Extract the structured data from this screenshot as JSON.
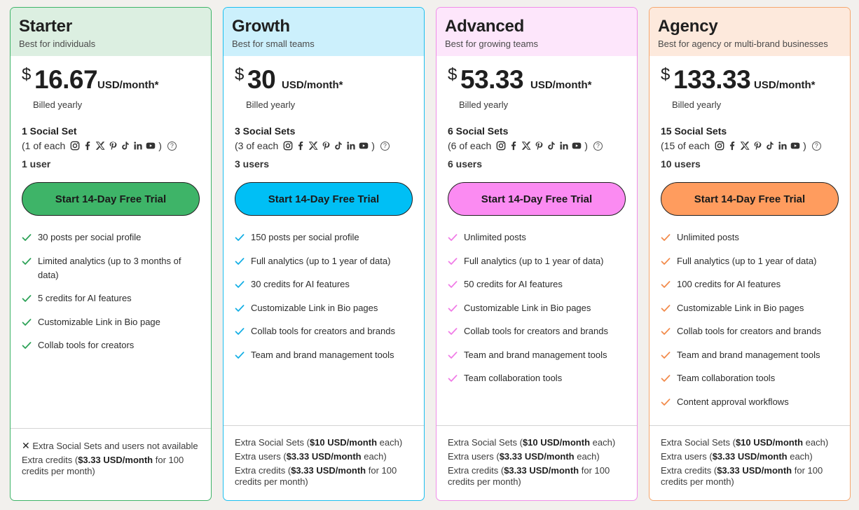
{
  "plans": [
    {
      "name": "Starter",
      "tagline": "Best for individuals",
      "currency": "$",
      "amount": "16.67",
      "unit": "USD/month*",
      "billing": "Billed yearly",
      "sets": "1 Social Set",
      "each_prefix": "(1 of each",
      "each_suffix": ")",
      "users": "1 user",
      "cta": "Start 14-Day Free Trial",
      "colors": {
        "head_bg": "#dcefe1",
        "border": "#3eb468",
        "button": "#3eb468",
        "check": "#2aa155"
      },
      "features": [
        "30 posts per social profile",
        "Limited analytics (up to 3 months of data)",
        "5 credits for AI features",
        "Customizable Link in Bio page",
        "Collab tools for creators"
      ],
      "footer": {
        "note_icon": "x-icon",
        "note": "Extra Social Sets and users not available",
        "credits_pre": "Extra credits (",
        "credits_bold": "$3.33 USD/month",
        "credits_post": " for 100 credits per month)"
      }
    },
    {
      "name": "Growth",
      "tagline": "Best for small teams",
      "currency": "$",
      "amount": "30",
      "unit": "USD/month*",
      "billing": "Billed yearly",
      "sets": "3 Social Sets",
      "each_prefix": "(3 of each",
      "each_suffix": ")",
      "users": "3 users",
      "cta": "Start 14-Day Free Trial",
      "colors": {
        "head_bg": "#ccf0fc",
        "border": "#1cbfef",
        "button": "#00bff5",
        "check": "#12aee4"
      },
      "features": [
        "150 posts per social profile",
        "Full analytics (up to 1 year of data)",
        "30 credits for AI features",
        "Customizable Link in Bio pages",
        "Collab tools for creators and brands",
        "Team and brand management tools"
      ],
      "footer": {
        "sets_pre": "Extra Social Sets (",
        "sets_bold": "$10 USD/month",
        "sets_post": " each)",
        "users_pre": "Extra users (",
        "users_bold": "$3.33 USD/month",
        "users_post": " each)",
        "credits_pre": "Extra credits (",
        "credits_bold": "$3.33 USD/month",
        "credits_post": " for 100 credits per month)"
      }
    },
    {
      "name": "Advanced",
      "tagline": "Best for growing teams",
      "currency": "$",
      "amount": "53.33",
      "unit": "USD/month*",
      "billing": "Billed yearly",
      "sets": "6 Social Sets",
      "each_prefix": "(6 of each",
      "each_suffix": ")",
      "users": "6 users",
      "cta": "Start 14-Day Free Trial",
      "colors": {
        "head_bg": "#fde6fb",
        "border": "#f08ee9",
        "button": "#fb8bf2",
        "check": "#f07ae6"
      },
      "features": [
        "Unlimited posts",
        "Full analytics (up to 1 year of data)",
        "50 credits for AI features",
        "Customizable Link in Bio pages",
        "Collab tools for creators and brands",
        "Team and brand management tools",
        "Team collaboration tools"
      ],
      "footer": {
        "sets_pre": "Extra Social Sets (",
        "sets_bold": "$10 USD/month",
        "sets_post": " each)",
        "users_pre": "Extra users (",
        "users_bold": "$3.33 USD/month",
        "users_post": " each)",
        "credits_pre": "Extra credits (",
        "credits_bold": "$3.33 USD/month",
        "credits_post": " for 100 credits per month)"
      }
    },
    {
      "name": "Agency",
      "tagline": "Best for agency or multi-brand businesses",
      "currency": "$",
      "amount": "133.33",
      "unit": "USD/month*",
      "billing": "Billed yearly",
      "sets": "15 Social Sets",
      "each_prefix": "(15 of each",
      "each_suffix": ")",
      "users": "10 users",
      "cta": "Start 14-Day Free Trial",
      "colors": {
        "head_bg": "#fde9dc",
        "border": "#f5a76f",
        "button": "#ff9c5e",
        "check": "#f28a4a"
      },
      "features": [
        "Unlimited posts",
        "Full analytics (up to 1 year of data)",
        "100 credits for AI features",
        "Customizable Link in Bio pages",
        "Collab tools for creators and brands",
        "Team and brand management tools",
        "Team collaboration tools",
        "Content approval workflows"
      ],
      "footer": {
        "sets_pre": "Extra Social Sets (",
        "sets_bold": "$10 USD/month",
        "sets_post": " each)",
        "users_pre": "Extra users (",
        "users_bold": "$3.33 USD/month",
        "users_post": " each)",
        "credits_pre": "Extra credits (",
        "credits_bold": "$3.33 USD/month",
        "credits_post": " for 100 credits per month)"
      }
    }
  ],
  "social_icons": [
    "instagram-icon",
    "facebook-icon",
    "x-icon",
    "pinterest-icon",
    "tiktok-icon",
    "linkedin-icon",
    "youtube-icon"
  ],
  "help_glyph": "?"
}
